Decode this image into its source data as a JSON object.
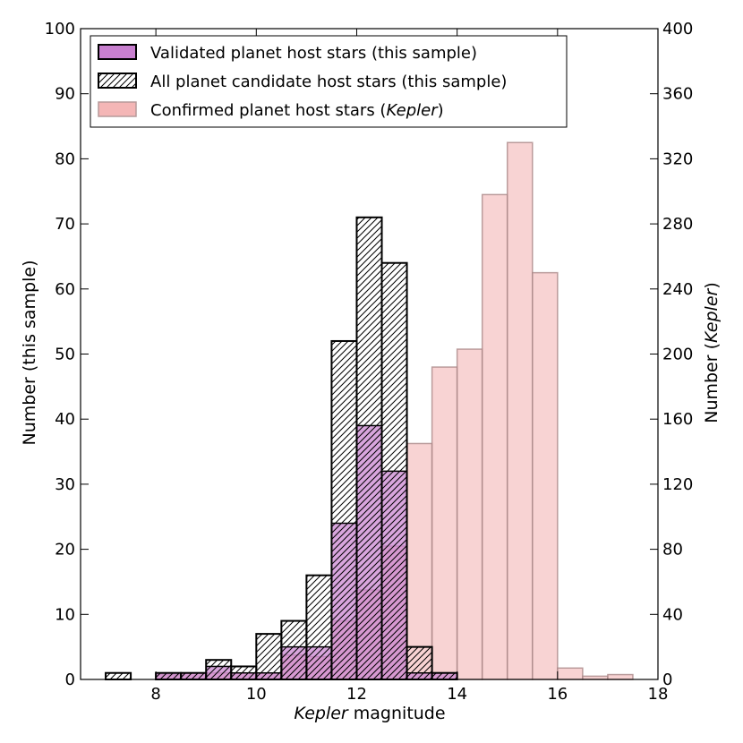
{
  "chart_data": {
    "type": "bar",
    "title": "",
    "xlabel": "magnitude",
    "xlabel_italic": "Kepler",
    "ylabel": "Number (this sample)",
    "y2label_prefix": "Number (",
    "y2label_italic": "Kepler",
    "y2label_suffix": ")",
    "xlim": [
      6.5,
      18
    ],
    "ylim": [
      0,
      100
    ],
    "y2lim": [
      0,
      400
    ],
    "xticks": [
      8,
      10,
      12,
      14,
      16,
      18
    ],
    "yticks": [
      0,
      10,
      20,
      30,
      40,
      50,
      60,
      70,
      80,
      90,
      100
    ],
    "y2ticks": [
      0,
      40,
      80,
      120,
      160,
      200,
      240,
      280,
      320,
      360,
      400
    ],
    "bin_width": 0.5,
    "legend_position": "top-left",
    "series": [
      {
        "name": "Confirmed planet host stars (Kepler)",
        "legend_text": "Confirmed planet host stars (",
        "legend_italic": "Kepler",
        "legend_suffix": ")",
        "axis": "right",
        "style": "fill",
        "color": "#f4b6b6",
        "bin_starts": [
          8.0,
          8.5,
          9.0,
          9.5,
          10.0,
          10.5,
          11.0,
          11.5,
          12.0,
          12.5,
          13.0,
          13.5,
          14.0,
          14.5,
          15.0,
          15.5,
          16.0,
          16.5,
          17.0
        ],
        "values": [
          3,
          4,
          4,
          4,
          4,
          15,
          14,
          36,
          55,
          82,
          145,
          192,
          203,
          298,
          330,
          250,
          7,
          2,
          3
        ]
      },
      {
        "name": "Validated planet host stars (this sample)",
        "legend_text": "Validated planet host stars (this sample)",
        "axis": "left",
        "style": "fill",
        "color": "#c87fcf",
        "bin_starts": [
          8.0,
          8.5,
          9.0,
          9.5,
          10.0,
          10.5,
          11.0,
          11.5,
          12.0,
          12.5,
          13.0,
          13.5
        ],
        "values": [
          1,
          1,
          2,
          1,
          1,
          5,
          5,
          24,
          39,
          32,
          1,
          1
        ]
      },
      {
        "name": "All planet candidate host stars (this sample)",
        "legend_text": "All planet candidate host stars (this sample)",
        "axis": "left",
        "style": "hatch",
        "color": "#000000",
        "bin_starts": [
          7.0,
          7.5,
          8.0,
          8.5,
          9.0,
          9.5,
          10.0,
          10.5,
          11.0,
          11.5,
          12.0,
          12.5,
          13.0,
          13.5
        ],
        "values": [
          1,
          0,
          1,
          1,
          3,
          2,
          7,
          9,
          16,
          52,
          71,
          64,
          5,
          1
        ]
      }
    ]
  }
}
